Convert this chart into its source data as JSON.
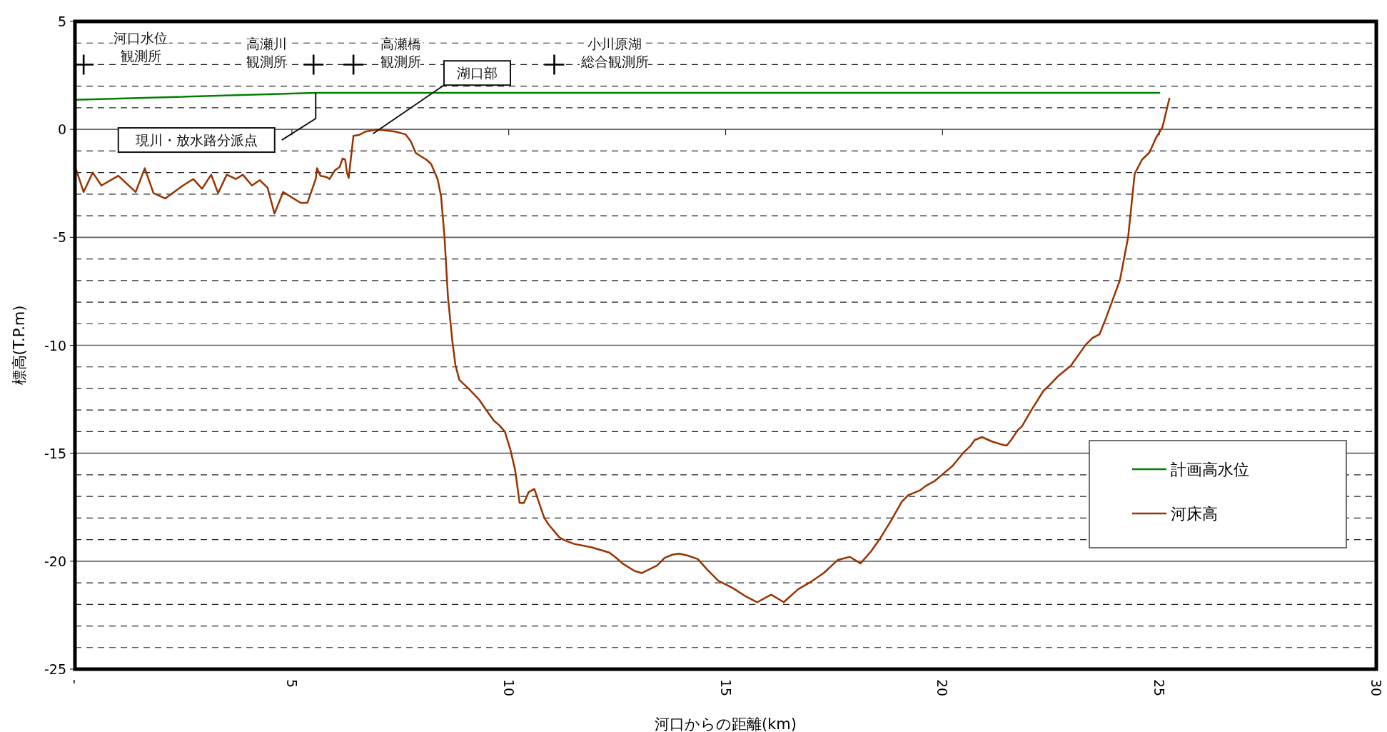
{
  "chart_data": {
    "type": "line",
    "xlabel": "河口からの距離(km)",
    "ylabel": "標高(T.P.m)",
    "xlim": [
      0,
      30
    ],
    "xticks": [
      {
        "value": 0,
        "label": "-"
      },
      5,
      10,
      15,
      20,
      25,
      30
    ],
    "ylim": [
      -25,
      5
    ],
    "yticks": [
      5,
      {
        "value": 4,
        "label": null
      },
      {
        "value": 3,
        "label": null
      },
      {
        "value": 2,
        "label": null
      },
      {
        "value": 1,
        "label": null
      },
      0,
      {
        "value": -1,
        "label": null
      },
      {
        "value": -2,
        "label": null
      },
      {
        "value": -3,
        "label": null
      },
      {
        "value": -4,
        "label": null
      },
      -5,
      {
        "value": -6,
        "label": null
      },
      {
        "value": -7,
        "label": null
      },
      {
        "value": -8,
        "label": null
      },
      {
        "value": -9,
        "label": null
      },
      -10,
      {
        "value": -11,
        "label": null
      },
      {
        "value": -12,
        "label": null
      },
      {
        "value": -13,
        "label": null
      },
      {
        "value": -14,
        "label": null
      },
      -15,
      {
        "value": -16,
        "label": null
      },
      {
        "value": -17,
        "label": null
      },
      {
        "value": -18,
        "label": null
      },
      {
        "value": -19,
        "label": null
      },
      -20,
      {
        "value": -21,
        "label": null
      },
      {
        "value": -22,
        "label": null
      },
      {
        "value": -23,
        "label": null
      },
      {
        "value": -24,
        "label": null
      },
      -25
    ],
    "grid": "y",
    "legend": "bottom right",
    "line_style": "solid",
    "series": [
      {
        "name": "計画高水位",
        "color": "#008000",
        "x": [
          0,
          5.55,
          25
        ],
        "values": [
          1.37,
          1.69,
          1.69
        ]
      },
      {
        "name": "河床高",
        "color": "#993300",
        "x": [
          0,
          0.2,
          0.41,
          0.61,
          1.0,
          1.4,
          1.61,
          1.81,
          2.08,
          2.49,
          2.73,
          2.93,
          3.14,
          3.3,
          3.5,
          3.71,
          3.87,
          4.08,
          4.26,
          4.44,
          4.6,
          4.8,
          5.2,
          5.36,
          5.55,
          5.58,
          5.66,
          5.79,
          5.87,
          5.99,
          6.1,
          6.17,
          6.23,
          6.27,
          6.31,
          6.42,
          6.56,
          6.7,
          6.97,
          7.38,
          7.62,
          7.74,
          7.86,
          7.94,
          8.1,
          8.21,
          8.36,
          8.44,
          8.52,
          8.6,
          8.7,
          8.77,
          8.86,
          9.07,
          9.31,
          9.5,
          9.66,
          9.78,
          9.91,
          10.04,
          10.15,
          10.25,
          10.35,
          10.46,
          10.59,
          10.82,
          10.92,
          11.17,
          11.31,
          11.51,
          11.9,
          12.32,
          12.48,
          12.62,
          12.9,
          13.07,
          13.42,
          13.59,
          13.77,
          13.93,
          14.14,
          14.36,
          14.58,
          14.83,
          15.17,
          15.48,
          15.73,
          16.05,
          16.34,
          16.67,
          16.97,
          17.26,
          17.58,
          17.86,
          18.11,
          18.35,
          18.56,
          18.82,
          19.06,
          19.21,
          19.48,
          19.61,
          19.83,
          20.05,
          20.23,
          20.47,
          20.65,
          20.74,
          20.91,
          21.12,
          21.37,
          21.48,
          21.58,
          21.73,
          21.83,
          22.05,
          22.33,
          22.46,
          22.67,
          22.96,
          23.3,
          23.46,
          23.62,
          23.77,
          24.09,
          24.28,
          24.43,
          24.6,
          24.77,
          24.92,
          25.07,
          25.23
        ],
        "values": [
          -1.7,
          -2.9,
          -2.0,
          -2.6,
          -2.15,
          -2.9,
          -1.8,
          -2.95,
          -3.2,
          -2.6,
          -2.3,
          -2.75,
          -2.1,
          -2.95,
          -2.1,
          -2.3,
          -2.1,
          -2.6,
          -2.35,
          -2.7,
          -3.9,
          -2.9,
          -3.4,
          -3.4,
          -2.3,
          -1.8,
          -2.15,
          -2.2,
          -2.3,
          -1.9,
          -1.75,
          -1.35,
          -1.4,
          -2.0,
          -2.25,
          -0.3,
          -0.25,
          -0.1,
          0,
          -0.1,
          -0.23,
          -0.55,
          -1.1,
          -1.2,
          -1.4,
          -1.6,
          -2.3,
          -3.1,
          -5.0,
          -7.8,
          -9.8,
          -10.9,
          -11.6,
          -12.0,
          -12.5,
          -13.05,
          -13.5,
          -13.7,
          -14.0,
          -14.85,
          -15.8,
          -17.3,
          -17.3,
          -16.8,
          -16.65,
          -18.0,
          -18.3,
          -18.9,
          -19.05,
          -19.2,
          -19.35,
          -19.6,
          -19.85,
          -20.1,
          -20.45,
          -20.55,
          -20.2,
          -19.85,
          -19.7,
          -19.65,
          -19.75,
          -19.9,
          -20.4,
          -20.9,
          -21.25,
          -21.65,
          -21.9,
          -21.55,
          -21.9,
          -21.3,
          -20.95,
          -20.55,
          -19.95,
          -19.8,
          -20.1,
          -19.55,
          -18.95,
          -18.1,
          -17.25,
          -16.94,
          -16.72,
          -16.52,
          -16.27,
          -15.89,
          -15.59,
          -15.0,
          -14.65,
          -14.39,
          -14.25,
          -14.44,
          -14.6,
          -14.65,
          -14.39,
          -13.94,
          -13.76,
          -13.0,
          -12.1,
          -11.86,
          -11.42,
          -10.94,
          -9.98,
          -9.66,
          -9.49,
          -8.73,
          -6.98,
          -4.98,
          -2.06,
          -1.4,
          -1.07,
          -0.4,
          0.1,
          1.43
        ]
      },
      {
        "type": "scatter",
        "marker": "cross",
        "color": "#000000",
        "x": [
          0.2,
          5.5,
          6.42,
          11.05
        ],
        "values": [
          3,
          3,
          3,
          3
        ]
      }
    ],
    "annotations": [
      "河口水位観測所",
      "高瀬川観測所",
      "高瀬橋観測所",
      "小川原湖総合観測所",
      "現川・放水路分派点",
      {
        "text": "湖口部",
        "x": 6.87,
        "y": -0.2
      }
    ]
  }
}
